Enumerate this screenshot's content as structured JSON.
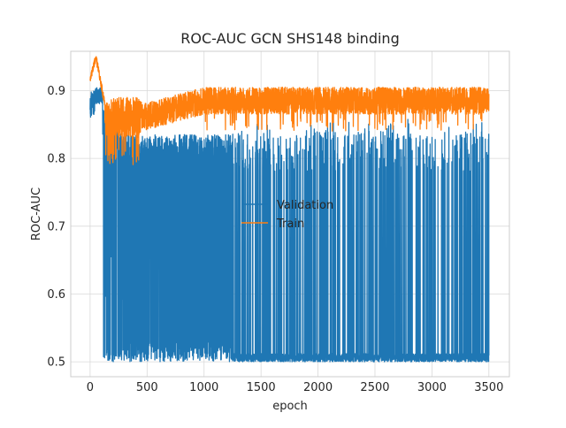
{
  "chart_data": {
    "type": "line",
    "title": "ROC-AUC GCN SHS148 binding",
    "xlabel": "epoch",
    "ylabel": "ROC-AUC",
    "xlim": [
      -170,
      3680
    ],
    "ylim": [
      0.478,
      0.958
    ],
    "x_ticks": [
      0,
      500,
      1000,
      1500,
      2000,
      2500,
      3000,
      3500
    ],
    "y_ticks": [
      0.5,
      0.6,
      0.7,
      0.8,
      0.9
    ],
    "x_tick_labels": [
      "0",
      "500",
      "1000",
      "1500",
      "2000",
      "2500",
      "3000",
      "3500"
    ],
    "y_tick_labels": [
      "0.5",
      "0.6",
      "0.7",
      "0.8",
      "0.9"
    ],
    "grid": true,
    "legend_position": "center",
    "num_epochs": 3500,
    "series": [
      {
        "name": "Validation",
        "color": "#1f77b4",
        "summary": {
          "start": 0.88,
          "early_peak": 0.905,
          "plateau": 0.81,
          "plateau_until_epoch": 1250,
          "floor": 0.5,
          "mostly_floor_after_epoch": 1250
        }
      },
      {
        "name": "Train",
        "color": "#ff7f0e",
        "summary": {
          "start": 0.915,
          "peak": 0.95,
          "peak_epoch": 50,
          "dip_min": 0.79,
          "dip_epoch_range": [
            150,
            450
          ],
          "steady_mean": 0.885,
          "steady_range": [
            0.84,
            0.912
          ]
        }
      }
    ]
  }
}
